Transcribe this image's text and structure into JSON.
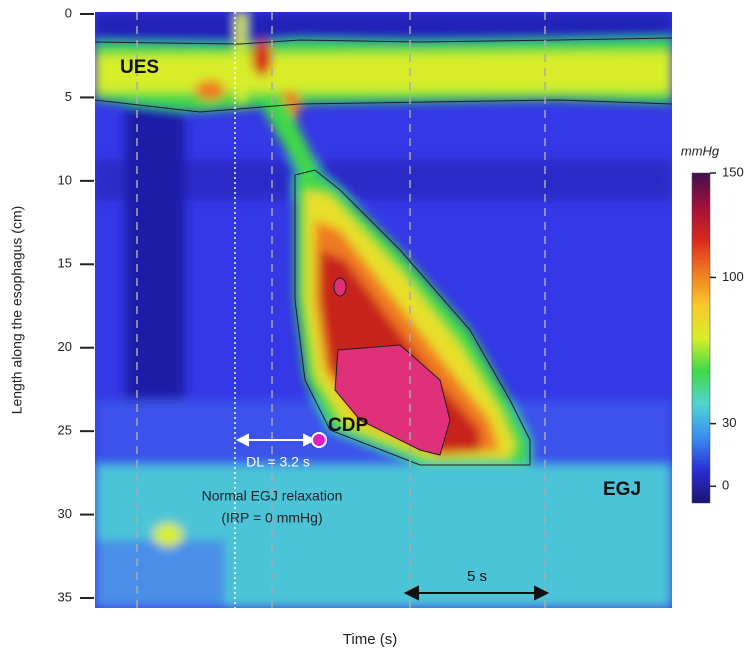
{
  "chart_data": {
    "type": "topography",
    "xlabel": "Time (s)",
    "ylabel": "Length along the esophagus (cm)",
    "ylim": [
      0,
      35.6
    ],
    "yticks": [
      0,
      5,
      10,
      15,
      20,
      25,
      30,
      35
    ],
    "colorbar": {
      "unit": "mmHg",
      "clim": [
        -8,
        150
      ],
      "ticks": [
        0,
        30,
        100,
        150
      ],
      "colors": [
        "#1a1470",
        "#2a2fd6",
        "#3a8ff0",
        "#4fd6d0",
        "#3fd84a",
        "#d8ee2a",
        "#f8c82a",
        "#f07a22",
        "#d8281e",
        "#a0103a",
        "#401050"
      ]
    },
    "annotations": [
      "UES",
      "CDP",
      "EGJ",
      "DL = 3.2 s",
      "Normal EGJ relaxation",
      "(IRP = 0 mmHg)",
      "5 s"
    ]
  }
}
